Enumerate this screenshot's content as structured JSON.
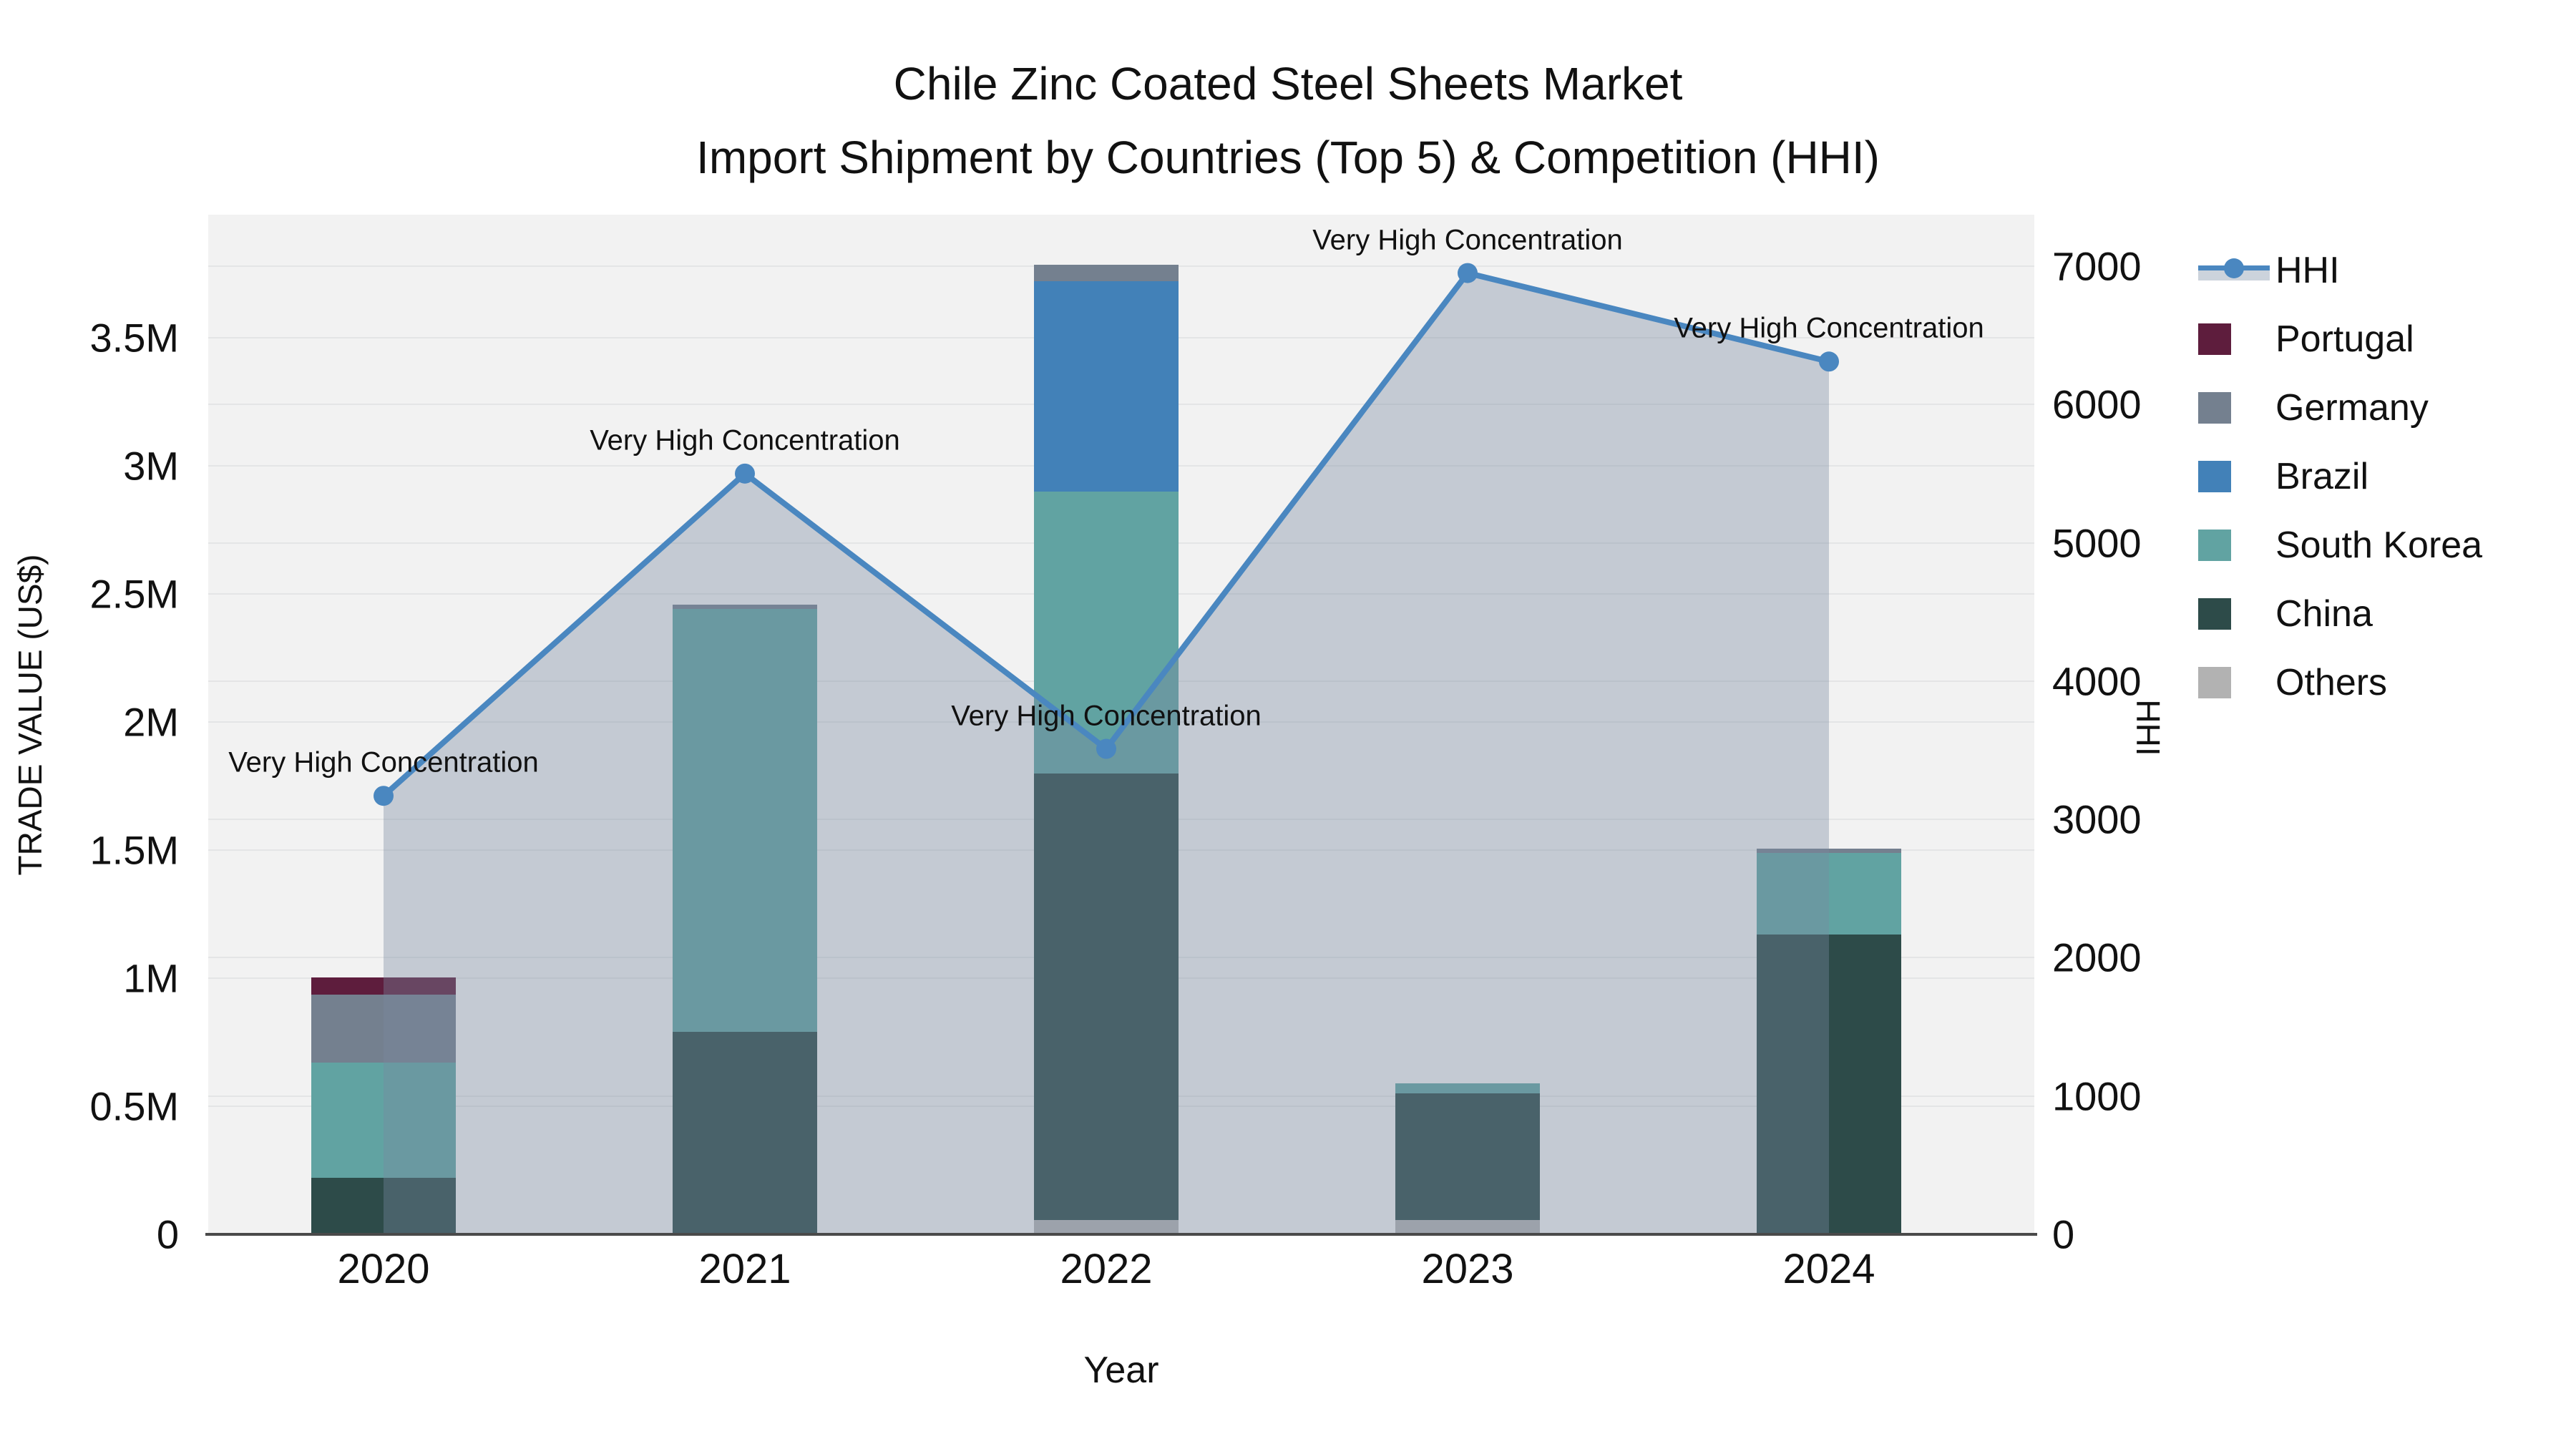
{
  "title": {
    "line1": "Chile Zinc Coated Steel Sheets Market",
    "line2": "Import Shipment by Countries (Top 5) & Competition (HHI)"
  },
  "axes": {
    "x_title": "Year",
    "y_left_title": "TRADE VALUE (US$)",
    "y_right_title": "HHI"
  },
  "legend_items": [
    {
      "label": "HHI",
      "color": "#4a87c0",
      "type": "line"
    },
    {
      "label": "Portugal",
      "color": "#5e1d3d",
      "type": "swatch"
    },
    {
      "label": "Germany",
      "color": "#74808f",
      "type": "swatch"
    },
    {
      "label": "Brazil",
      "color": "#4281b8",
      "type": "swatch"
    },
    {
      "label": "South Korea",
      "color": "#61a3a2",
      "type": "swatch"
    },
    {
      "label": "China",
      "color": "#2d4b49",
      "type": "swatch"
    },
    {
      "label": "Others",
      "color": "#b2b2b2",
      "type": "swatch"
    }
  ],
  "chart_data": {
    "type": "bar+line",
    "title": "Chile Zinc Coated Steel Sheets Market — Import Shipment by Countries (Top 5) & Competition (HHI)",
    "categories": [
      "2020",
      "2021",
      "2022",
      "2023",
      "2024"
    ],
    "bar_unit": "US$",
    "stack_order_bottom_to_top": [
      "Others",
      "China",
      "South Korea",
      "Brazil",
      "Germany",
      "Portugal"
    ],
    "series": [
      {
        "name": "Others",
        "color": "#b2b2b2",
        "values": [
          0,
          0,
          55000,
          55000,
          0
        ]
      },
      {
        "name": "China",
        "color": "#2d4b49",
        "values": [
          220000,
          790000,
          1745000,
          495000,
          1170000
        ]
      },
      {
        "name": "South Korea",
        "color": "#61a3a2",
        "values": [
          450000,
          1650000,
          1100000,
          40000,
          320000
        ]
      },
      {
        "name": "Brazil",
        "color": "#4281b8",
        "values": [
          0,
          0,
          820000,
          0,
          0
        ]
      },
      {
        "name": "Germany",
        "color": "#74808f",
        "values": [
          265000,
          18000,
          65000,
          0,
          15000
        ]
      },
      {
        "name": "Portugal",
        "color": "#5e1d3d",
        "values": [
          67000,
          0,
          0,
          0,
          0
        ]
      }
    ],
    "line_series": {
      "name": "HHI",
      "color": "#4a87c0",
      "area_fill": "rgba(120,137,160,0.38)",
      "values": [
        3170,
        5500,
        3510,
        6950,
        6310
      ]
    },
    "annotations": [
      "Very High Concentration",
      "Very High Concentration",
      "Very High Concentration",
      "Very High Concentration",
      "Very High Concentration"
    ],
    "xlabel": "Year",
    "ylabel_left": "TRADE VALUE (US$)",
    "ylabel_right": "HHI",
    "y_left_ticks": [
      {
        "value": 0,
        "label": "0"
      },
      {
        "value": 500000,
        "label": "0.5M"
      },
      {
        "value": 1000000,
        "label": "1M"
      },
      {
        "value": 1500000,
        "label": "1.5M"
      },
      {
        "value": 2000000,
        "label": "2M"
      },
      {
        "value": 2500000,
        "label": "2.5M"
      },
      {
        "value": 3000000,
        "label": "3M"
      },
      {
        "value": 3500000,
        "label": "3.5M"
      }
    ],
    "y_right_ticks": [
      {
        "value": 0,
        "label": "0"
      },
      {
        "value": 1000,
        "label": "1000"
      },
      {
        "value": 2000,
        "label": "2000"
      },
      {
        "value": 3000,
        "label": "3000"
      },
      {
        "value": 4000,
        "label": "4000"
      },
      {
        "value": 5000,
        "label": "5000"
      },
      {
        "value": 6000,
        "label": "6000"
      },
      {
        "value": 7000,
        "label": "7000"
      }
    ],
    "y_left_max": 3980000,
    "y_right_max": 7372,
    "grid": true,
    "legend_position": "right"
  }
}
